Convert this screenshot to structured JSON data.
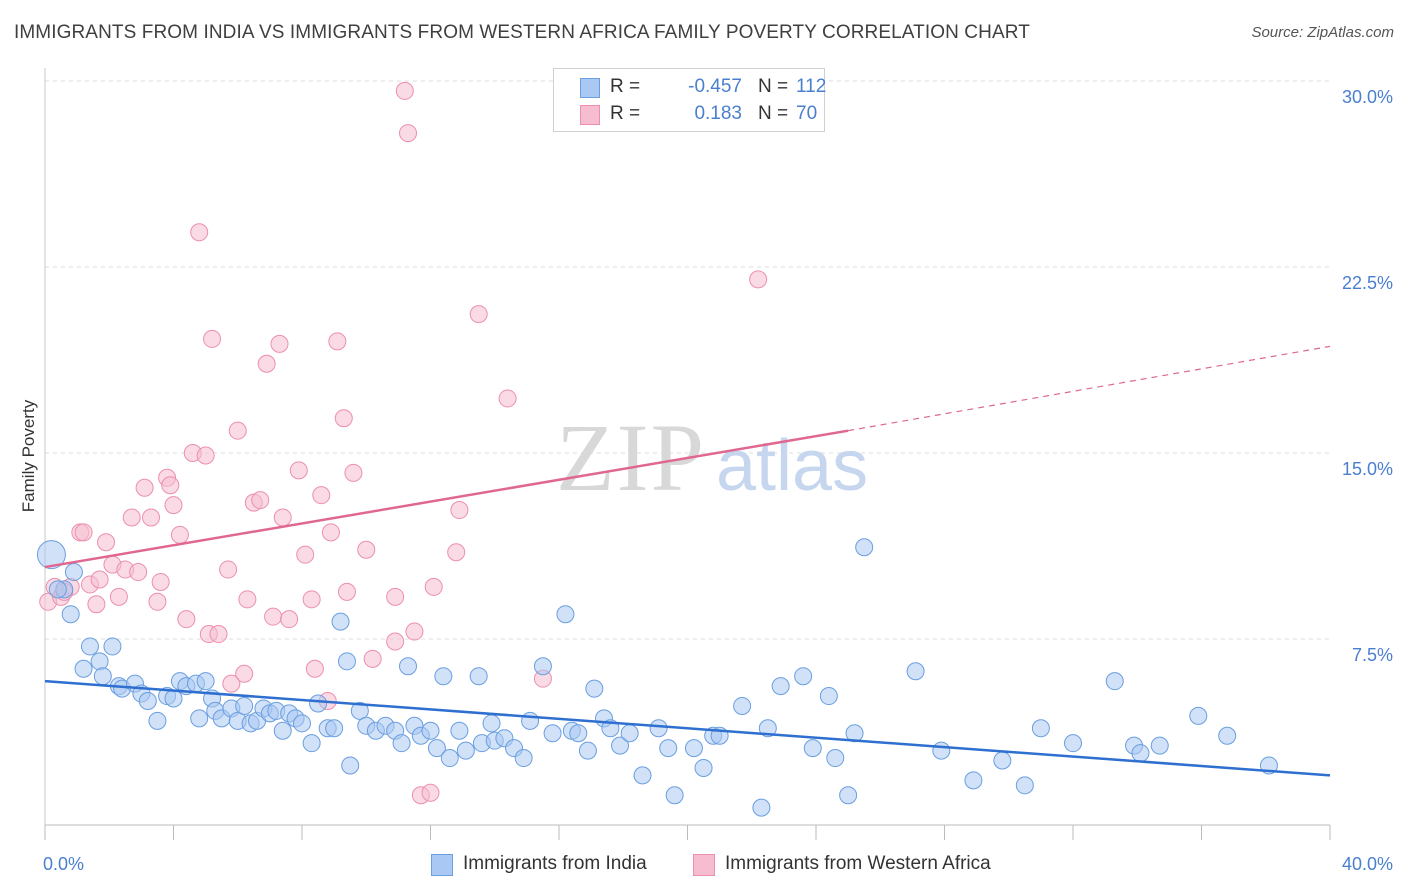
{
  "title": "IMMIGRANTS FROM INDIA VS IMMIGRANTS FROM WESTERN AFRICA FAMILY POVERTY CORRELATION CHART",
  "source": "Source: ZipAtlas.com",
  "watermark": {
    "zip": "ZIP",
    "atlas": "atlas"
  },
  "legend": {
    "r_label": "R =",
    "n_label": "N =",
    "rows": [
      {
        "r": "-0.457",
        "n": "112"
      },
      {
        "r": "0.183",
        "n": "70"
      }
    ]
  },
  "colors": {
    "india_fill": "#a9c8f3",
    "india_stroke": "#6a9fe0",
    "india_line": "#2e6fd0",
    "wa_fill": "#f6bdd0",
    "wa_stroke": "#ec8fae",
    "wa_line": "#e06790",
    "axis_text": "#4a7fd0",
    "grid": "#dddddd"
  },
  "chart_data": {
    "type": "scatter",
    "title": "IMMIGRANTS FROM INDIA VS IMMIGRANTS FROM WESTERN AFRICA FAMILY POVERTY CORRELATION CHART",
    "xlabel": "",
    "ylabel": "Family Poverty",
    "xlim": [
      0,
      40
    ],
    "ylim": [
      0,
      30
    ],
    "x_tick_labels": [
      "0.0%",
      "40.0%"
    ],
    "y_ticks": [
      7.5,
      15.0,
      22.5,
      30.0
    ],
    "y_tick_labels": [
      "7.5%",
      "15.0%",
      "22.5%",
      "30.0%"
    ],
    "grid": "horizontal dashed",
    "legend_position": "top-center and bottom",
    "series": [
      {
        "name": "Immigrants from India",
        "r": -0.457,
        "n": 112,
        "trend": {
          "x": [
            0,
            40
          ],
          "y": [
            5.8,
            2.0
          ]
        },
        "points": [
          [
            0.2,
            10.9
          ],
          [
            0.9,
            10.2
          ],
          [
            0.6,
            9.5
          ],
          [
            0.8,
            8.5
          ],
          [
            1.4,
            7.2
          ],
          [
            2.1,
            7.2
          ],
          [
            1.2,
            6.3
          ],
          [
            1.7,
            6.6
          ],
          [
            1.8,
            6.0
          ],
          [
            2.3,
            5.6
          ],
          [
            2.4,
            5.5
          ],
          [
            2.8,
            5.7
          ],
          [
            3.0,
            5.3
          ],
          [
            3.2,
            5.0
          ],
          [
            3.5,
            4.2
          ],
          [
            3.8,
            5.2
          ],
          [
            4.0,
            5.1
          ],
          [
            4.2,
            5.8
          ],
          [
            4.4,
            5.6
          ],
          [
            4.7,
            5.7
          ],
          [
            4.8,
            4.3
          ],
          [
            5.0,
            5.8
          ],
          [
            5.2,
            5.1
          ],
          [
            5.3,
            4.6
          ],
          [
            5.5,
            4.3
          ],
          [
            5.8,
            4.7
          ],
          [
            6.0,
            4.2
          ],
          [
            6.2,
            4.8
          ],
          [
            6.4,
            4.1
          ],
          [
            6.6,
            4.2
          ],
          [
            6.8,
            4.7
          ],
          [
            7.0,
            4.5
          ],
          [
            7.2,
            4.6
          ],
          [
            7.4,
            3.8
          ],
          [
            7.6,
            4.5
          ],
          [
            7.8,
            4.3
          ],
          [
            8.0,
            4.1
          ],
          [
            8.3,
            3.3
          ],
          [
            8.5,
            4.9
          ],
          [
            8.8,
            3.9
          ],
          [
            9.0,
            3.9
          ],
          [
            9.2,
            8.2
          ],
          [
            9.4,
            6.6
          ],
          [
            9.5,
            2.4
          ],
          [
            9.8,
            4.6
          ],
          [
            10.0,
            4.0
          ],
          [
            10.3,
            3.8
          ],
          [
            10.6,
            4.0
          ],
          [
            10.9,
            3.8
          ],
          [
            11.1,
            3.3
          ],
          [
            11.3,
            6.4
          ],
          [
            11.5,
            4.0
          ],
          [
            11.7,
            3.6
          ],
          [
            12.0,
            3.8
          ],
          [
            12.2,
            3.1
          ],
          [
            12.4,
            6.0
          ],
          [
            12.6,
            2.7
          ],
          [
            12.9,
            3.8
          ],
          [
            13.1,
            3.0
          ],
          [
            13.5,
            6.0
          ],
          [
            13.6,
            3.3
          ],
          [
            13.9,
            4.1
          ],
          [
            14.0,
            3.4
          ],
          [
            14.3,
            3.5
          ],
          [
            14.6,
            3.1
          ],
          [
            14.9,
            2.7
          ],
          [
            15.1,
            4.2
          ],
          [
            15.5,
            6.4
          ],
          [
            15.8,
            3.7
          ],
          [
            16.2,
            8.5
          ],
          [
            16.4,
            3.8
          ],
          [
            16.6,
            3.7
          ],
          [
            16.9,
            3.0
          ],
          [
            17.1,
            5.5
          ],
          [
            17.4,
            4.3
          ],
          [
            17.6,
            3.9
          ],
          [
            17.9,
            3.2
          ],
          [
            18.2,
            3.7
          ],
          [
            18.6,
            2.0
          ],
          [
            19.1,
            3.9
          ],
          [
            19.4,
            3.1
          ],
          [
            19.6,
            1.2
          ],
          [
            20.2,
            3.1
          ],
          [
            20.5,
            2.3
          ],
          [
            20.8,
            3.6
          ],
          [
            21.0,
            3.6
          ],
          [
            21.7,
            4.8
          ],
          [
            22.3,
            0.7
          ],
          [
            22.5,
            3.9
          ],
          [
            22.9,
            5.6
          ],
          [
            23.6,
            6.0
          ],
          [
            23.9,
            3.1
          ],
          [
            24.4,
            5.2
          ],
          [
            24.6,
            2.7
          ],
          [
            25.0,
            1.2
          ],
          [
            25.2,
            3.7
          ],
          [
            25.5,
            11.2
          ],
          [
            27.1,
            6.2
          ],
          [
            27.9,
            3.0
          ],
          [
            28.9,
            1.8
          ],
          [
            29.8,
            2.6
          ],
          [
            30.5,
            1.6
          ],
          [
            31.0,
            3.9
          ],
          [
            32.0,
            3.3
          ],
          [
            33.3,
            5.8
          ],
          [
            33.9,
            3.2
          ],
          [
            34.1,
            2.9
          ],
          [
            34.7,
            3.2
          ],
          [
            35.9,
            4.4
          ],
          [
            36.8,
            3.6
          ],
          [
            38.1,
            2.4
          ],
          [
            0.4,
            9.5
          ]
        ]
      },
      {
        "name": "Immigrants from Western Africa",
        "r": 0.183,
        "n": 70,
        "trend": {
          "x": [
            0,
            25
          ],
          "y": [
            10.4,
            15.9
          ]
        },
        "trend_dashed": {
          "x": [
            25,
            40
          ],
          "y": [
            15.9,
            19.3
          ]
        },
        "points": [
          [
            0.1,
            9.0
          ],
          [
            0.3,
            9.6
          ],
          [
            0.5,
            9.2
          ],
          [
            0.8,
            9.6
          ],
          [
            1.1,
            11.8
          ],
          [
            1.2,
            11.8
          ],
          [
            1.4,
            9.7
          ],
          [
            1.6,
            8.9
          ],
          [
            1.7,
            9.9
          ],
          [
            1.9,
            11.4
          ],
          [
            2.1,
            10.5
          ],
          [
            2.3,
            9.2
          ],
          [
            2.5,
            10.3
          ],
          [
            2.7,
            12.4
          ],
          [
            2.9,
            10.2
          ],
          [
            3.1,
            13.6
          ],
          [
            3.3,
            12.4
          ],
          [
            3.5,
            9.0
          ],
          [
            3.6,
            9.8
          ],
          [
            3.8,
            14.0
          ],
          [
            3.9,
            13.7
          ],
          [
            4.0,
            12.9
          ],
          [
            4.2,
            11.7
          ],
          [
            4.4,
            8.3
          ],
          [
            4.6,
            15.0
          ],
          [
            4.8,
            23.9
          ],
          [
            5.0,
            14.9
          ],
          [
            5.1,
            7.7
          ],
          [
            5.2,
            19.6
          ],
          [
            5.4,
            7.7
          ],
          [
            5.7,
            10.3
          ],
          [
            5.8,
            5.7
          ],
          [
            6.0,
            15.9
          ],
          [
            6.2,
            6.1
          ],
          [
            6.3,
            9.1
          ],
          [
            6.5,
            13.0
          ],
          [
            6.7,
            13.1
          ],
          [
            6.9,
            18.6
          ],
          [
            7.1,
            8.4
          ],
          [
            7.3,
            19.4
          ],
          [
            7.4,
            12.4
          ],
          [
            7.6,
            8.3
          ],
          [
            7.9,
            14.3
          ],
          [
            8.1,
            10.9
          ],
          [
            8.3,
            9.1
          ],
          [
            8.4,
            6.3
          ],
          [
            8.6,
            13.3
          ],
          [
            8.8,
            5.0
          ],
          [
            8.9,
            11.8
          ],
          [
            9.1,
            19.5
          ],
          [
            9.3,
            16.4
          ],
          [
            9.4,
            9.4
          ],
          [
            9.6,
            14.2
          ],
          [
            10.0,
            11.1
          ],
          [
            10.2,
            6.7
          ],
          [
            10.9,
            9.2
          ],
          [
            10.9,
            7.4
          ],
          [
            11.2,
            29.6
          ],
          [
            11.3,
            27.9
          ],
          [
            11.5,
            7.8
          ],
          [
            11.7,
            1.2
          ],
          [
            12.0,
            1.3
          ],
          [
            12.1,
            9.6
          ],
          [
            12.8,
            11.0
          ],
          [
            12.9,
            12.7
          ],
          [
            13.5,
            20.6
          ],
          [
            14.4,
            17.2
          ],
          [
            15.5,
            5.9
          ],
          [
            22.2,
            22.0
          ],
          [
            0.6,
            9.4
          ]
        ]
      }
    ]
  }
}
